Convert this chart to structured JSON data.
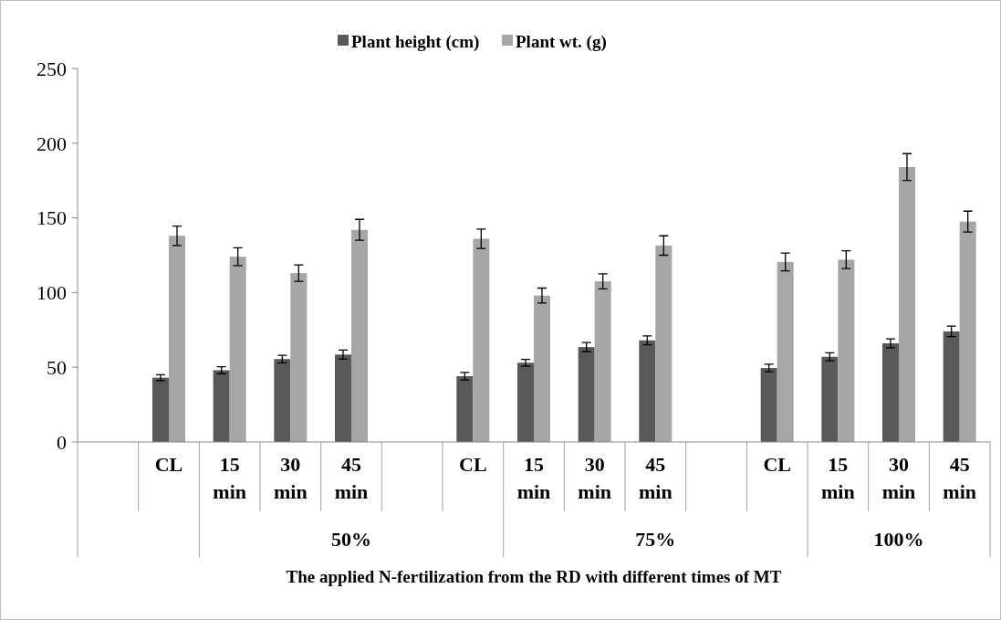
{
  "chart_data": {
    "type": "bar",
    "xlabel": "The applied N-fertilization from the RD with different times of MT",
    "categories": [
      null,
      "CL",
      "15 min",
      "30 min",
      "45 min",
      null,
      "CL",
      "15 min",
      "30 min",
      "45 min",
      null,
      "CL",
      "15 min",
      "30 min",
      "45 min"
    ],
    "annotations": [
      "50%",
      "75%",
      "100%"
    ],
    "series": [
      {
        "name": "Plant height (cm)",
        "color": "#595959",
        "values": [
          null,
          43,
          48,
          55.5,
          58.5,
          null,
          44,
          53,
          63.5,
          68,
          null,
          49.5,
          57,
          66,
          74
        ],
        "errors": [
          null,
          2,
          2.3,
          2.5,
          3,
          null,
          2.5,
          2.3,
          3,
          3,
          null,
          2.5,
          2.7,
          3,
          3.5
        ]
      },
      {
        "name": "Plant wt. (g)",
        "color": "#a6a6a6",
        "values": [
          null,
          138,
          124,
          113,
          142,
          null,
          136,
          98,
          107.5,
          131.5,
          null,
          120.5,
          122,
          184,
          147.5
        ],
        "errors": [
          null,
          6.5,
          6,
          5.5,
          7,
          null,
          6.5,
          5,
          5,
          6.5,
          null,
          6,
          6,
          9,
          7
        ]
      }
    ],
    "ylim": [
      0,
      250
    ],
    "yticks": [
      0,
      50,
      100,
      150,
      200,
      250
    ],
    "legend": "top"
  }
}
